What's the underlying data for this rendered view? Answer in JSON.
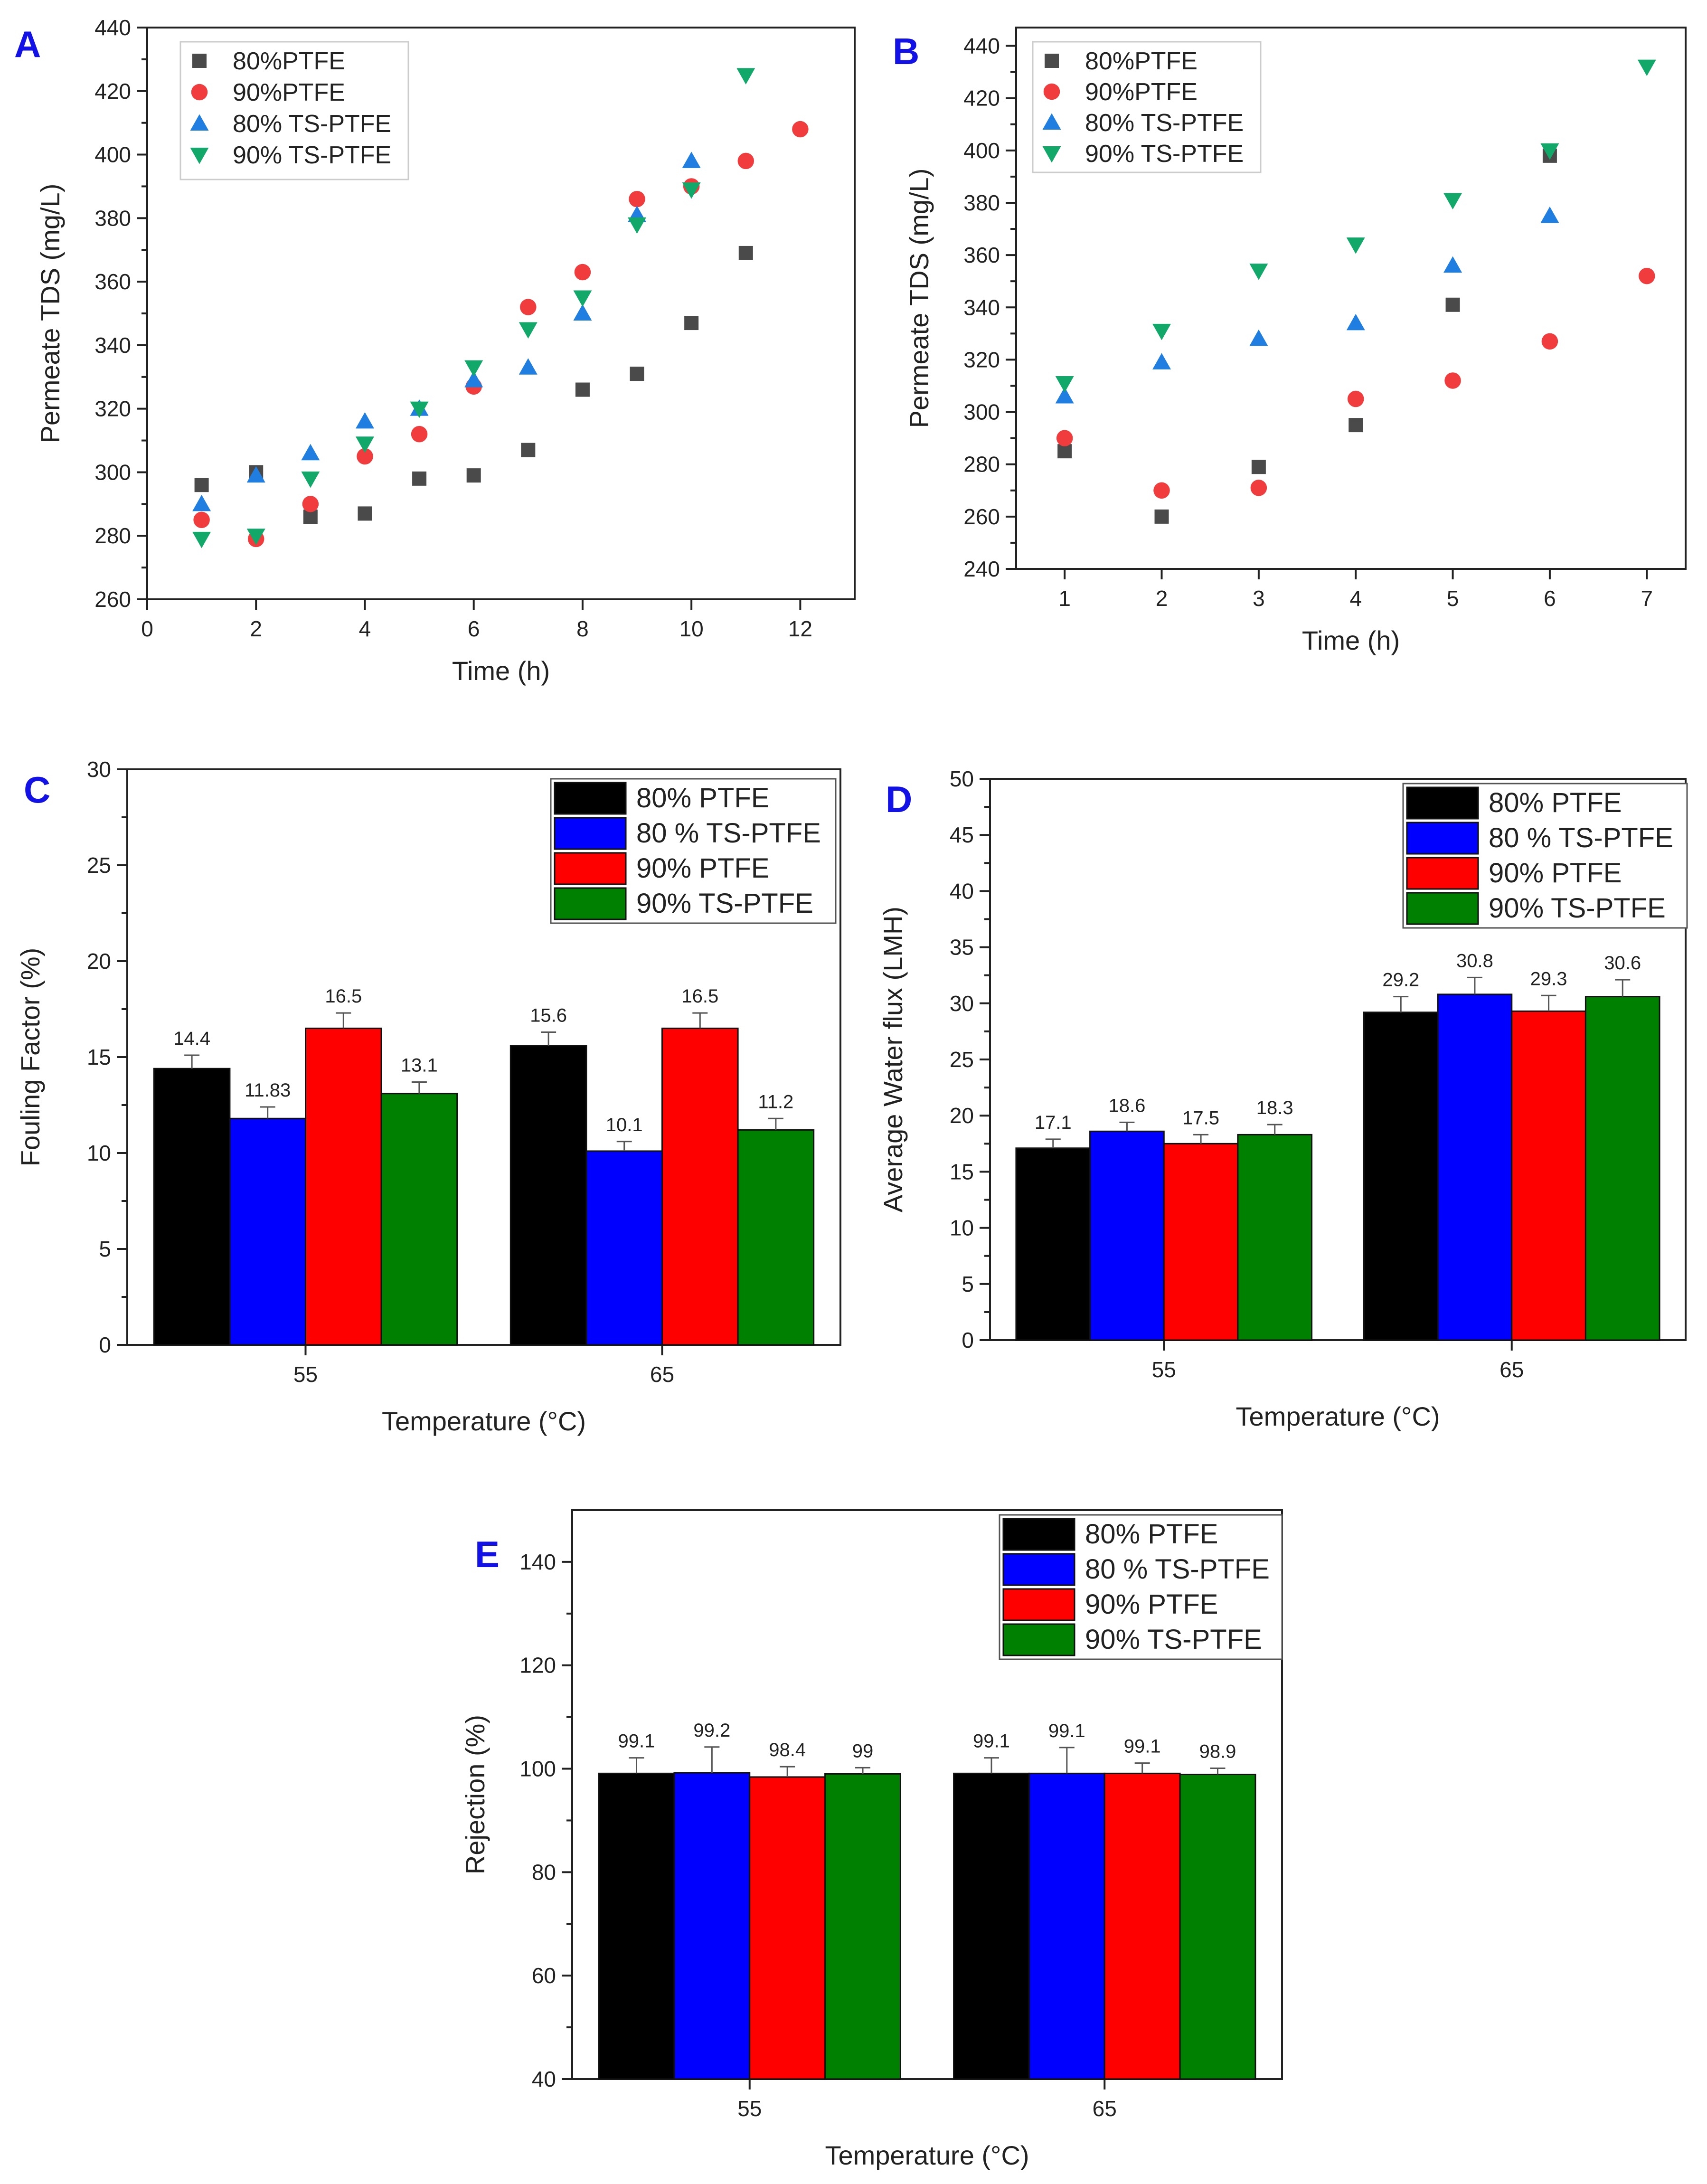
{
  "chart_data": [
    {
      "panel": "A",
      "type": "scatter",
      "xlabel": "Time (h)",
      "ylabel": "Permeate TDS (mg/L)",
      "xlim": [
        0,
        13
      ],
      "ylim": [
        260,
        440
      ],
      "xticks": [
        0,
        2,
        4,
        6,
        8,
        10,
        12
      ],
      "yticks": [
        260,
        280,
        300,
        320,
        340,
        360,
        380,
        400,
        420,
        440
      ],
      "legend_position": "top-left",
      "series": [
        {
          "name": "80%PTFE",
          "marker": "square",
          "color": "#4a4a4a",
          "points": [
            [
              1,
              296
            ],
            [
              2,
              300
            ],
            [
              3,
              286
            ],
            [
              4,
              287
            ],
            [
              5,
              298
            ],
            [
              6,
              299
            ],
            [
              7,
              307
            ],
            [
              8,
              326
            ],
            [
              9,
              331
            ],
            [
              10,
              347
            ],
            [
              11,
              369
            ]
          ]
        },
        {
          "name": "90%PTFE",
          "marker": "circle",
          "color": "#f03c3c",
          "points": [
            [
              1,
              285
            ],
            [
              2,
              279
            ],
            [
              3,
              290
            ],
            [
              4,
              305
            ],
            [
              5,
              312
            ],
            [
              6,
              327
            ],
            [
              7,
              352
            ],
            [
              8,
              363
            ],
            [
              9,
              386
            ],
            [
              10,
              390
            ],
            [
              11,
              398
            ],
            [
              12,
              408
            ]
          ]
        },
        {
          "name": "80% TS-PTFE",
          "marker": "triangle-up",
          "color": "#1f7ee0",
          "points": [
            [
              1,
              290
            ],
            [
              2,
              299
            ],
            [
              3,
              306
            ],
            [
              4,
              316
            ],
            [
              5,
              320
            ],
            [
              6,
              329
            ],
            [
              7,
              333
            ],
            [
              8,
              350
            ],
            [
              9,
              381
            ],
            [
              10,
              398
            ]
          ]
        },
        {
          "name": "90% TS-PTFE",
          "marker": "triangle-down",
          "color": "#12a86a",
          "points": [
            [
              1,
              279
            ],
            [
              2,
              280
            ],
            [
              3,
              298
            ],
            [
              4,
              309
            ],
            [
              5,
              320
            ],
            [
              6,
              333
            ],
            [
              7,
              345
            ],
            [
              8,
              355
            ],
            [
              9,
              378
            ],
            [
              10,
              389
            ],
            [
              11,
              425
            ]
          ]
        }
      ]
    },
    {
      "panel": "B",
      "type": "scatter",
      "xlabel": "Time (h)",
      "ylabel": "Permeate TDS (mg/L)",
      "xlim": [
        0.5,
        7.4
      ],
      "ylim": [
        240,
        447
      ],
      "xticks": [
        1,
        2,
        3,
        4,
        5,
        6,
        7
      ],
      "yticks": [
        240,
        260,
        280,
        300,
        320,
        340,
        360,
        380,
        400,
        420,
        440
      ],
      "legend_position": "top-left",
      "series": [
        {
          "name": "80%PTFE",
          "marker": "square",
          "color": "#4a4a4a",
          "points": [
            [
              1,
              285
            ],
            [
              2,
              260
            ],
            [
              3,
              279
            ],
            [
              4,
              295
            ],
            [
              5,
              341
            ],
            [
              6,
              398
            ]
          ]
        },
        {
          "name": "90%PTFE",
          "marker": "circle",
          "color": "#f03c3c",
          "points": [
            [
              1,
              290
            ],
            [
              2,
              270
            ],
            [
              3,
              271
            ],
            [
              4,
              305
            ],
            [
              5,
              312
            ],
            [
              6,
              327
            ],
            [
              7,
              352
            ]
          ]
        },
        {
          "name": "80% TS-PTFE",
          "marker": "triangle-up",
          "color": "#1f7ee0",
          "points": [
            [
              1,
              306
            ],
            [
              2,
              319
            ],
            [
              3,
              328
            ],
            [
              4,
              334
            ],
            [
              5,
              356
            ],
            [
              6,
              375
            ]
          ]
        },
        {
          "name": "90% TS-PTFE",
          "marker": "triangle-down",
          "color": "#12a86a",
          "points": [
            [
              1,
              311
            ],
            [
              2,
              331
            ],
            [
              3,
              354
            ],
            [
              4,
              364
            ],
            [
              5,
              381
            ],
            [
              6,
              400
            ],
            [
              7,
              432
            ]
          ]
        }
      ]
    },
    {
      "panel": "C",
      "type": "bar",
      "xlabel": "Temperature (°C)",
      "ylabel": "Fouling Factor (%)",
      "ylim": [
        0,
        30
      ],
      "yticks": [
        0,
        5,
        10,
        15,
        20,
        25,
        30
      ],
      "categories": [
        "55",
        "65"
      ],
      "legend_position": "top-right",
      "series": [
        {
          "name": "80% PTFE",
          "color": "#000000",
          "values": [
            14.4,
            15.6
          ],
          "errors": [
            0.7,
            0.7
          ],
          "labels": [
            "14.4",
            "15.6"
          ]
        },
        {
          "name": "80 % TS-PTFE",
          "color": "#0000ff",
          "values": [
            11.8,
            10.1
          ],
          "errors": [
            0.6,
            0.5
          ],
          "labels": [
            "11.83",
            "10.1"
          ]
        },
        {
          "name": "90% PTFE",
          "color": "#ff0000",
          "values": [
            16.5,
            16.5
          ],
          "errors": [
            0.8,
            0.8
          ],
          "labels": [
            "16.5",
            "16.5"
          ]
        },
        {
          "name": "90% TS-PTFE",
          "color": "#008000",
          "values": [
            13.1,
            11.2
          ],
          "errors": [
            0.6,
            0.6
          ],
          "labels": [
            "13.1",
            "11.2"
          ]
        }
      ]
    },
    {
      "panel": "D",
      "type": "bar",
      "xlabel": "Temperature (°C)",
      "ylabel": "Average Water flux (LMH)",
      "ylim": [
        0,
        50
      ],
      "yticks": [
        0,
        5,
        10,
        15,
        20,
        25,
        30,
        35,
        40,
        45,
        50
      ],
      "categories": [
        "55",
        "65"
      ],
      "legend_position": "top-right",
      "series": [
        {
          "name": "80% PTFE",
          "color": "#000000",
          "values": [
            17.1,
            29.2
          ],
          "errors": [
            0.8,
            1.4
          ],
          "labels": [
            "17.1",
            "29.2"
          ]
        },
        {
          "name": "80 % TS-PTFE",
          "color": "#0000ff",
          "values": [
            18.6,
            30.8
          ],
          "errors": [
            0.8,
            1.5
          ],
          "labels": [
            "18.6",
            "30.8"
          ]
        },
        {
          "name": "90% PTFE",
          "color": "#ff0000",
          "values": [
            17.5,
            29.3
          ],
          "errors": [
            0.8,
            1.4
          ],
          "labels": [
            "17.5",
            "29.3"
          ]
        },
        {
          "name": "90% TS-PTFE",
          "color": "#008000",
          "values": [
            18.3,
            30.6
          ],
          "errors": [
            0.9,
            1.5
          ],
          "labels": [
            "18.3",
            "30.6"
          ]
        }
      ]
    },
    {
      "panel": "E",
      "type": "bar",
      "xlabel": "Temperature (°C)",
      "ylabel": "Rejection (%)",
      "ylim": [
        40,
        150
      ],
      "yticks": [
        40,
        60,
        80,
        100,
        120,
        140
      ],
      "categories": [
        "55",
        "65"
      ],
      "legend_position": "top-right",
      "series": [
        {
          "name": "80% PTFE",
          "color": "#000000",
          "values": [
            99.1,
            99.1
          ],
          "errors": [
            3.0,
            3.0
          ],
          "labels": [
            "99.1",
            "99.1"
          ]
        },
        {
          "name": "80 % TS-PTFE",
          "color": "#0000ff",
          "values": [
            99.2,
            99.1
          ],
          "errors": [
            5.0,
            5.0
          ],
          "labels": [
            "99.2",
            "99.1"
          ]
        },
        {
          "name": "90% PTFE",
          "color": "#ff0000",
          "values": [
            98.4,
            99.1
          ],
          "errors": [
            2.0,
            2.0
          ],
          "labels": [
            "98.4",
            "99.1"
          ]
        },
        {
          "name": "90% TS-PTFE",
          "color": "#008000",
          "values": [
            99.0,
            98.9
          ],
          "errors": [
            1.2,
            1.2
          ],
          "labels": [
            "99",
            "98.9"
          ]
        }
      ]
    }
  ]
}
